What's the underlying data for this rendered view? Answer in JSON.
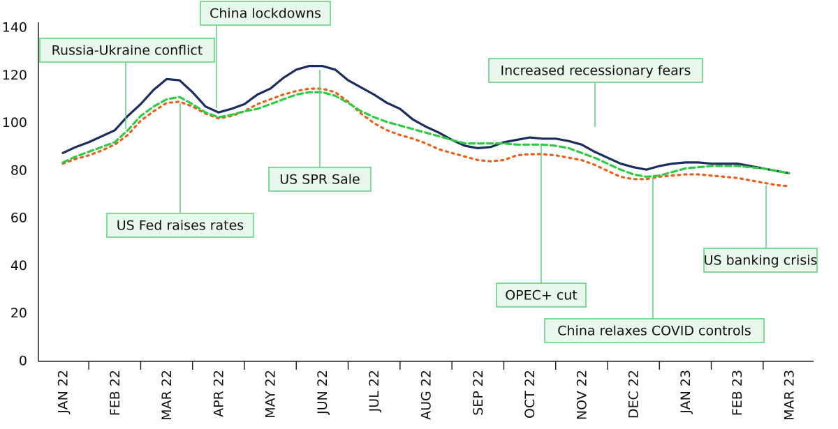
{
  "chart_data": {
    "type": "line",
    "categories": [
      "JAN 22",
      null,
      null,
      null,
      "FEB 22",
      null,
      null,
      null,
      "MAR 22",
      null,
      null,
      null,
      "APR 22",
      null,
      null,
      null,
      "MAY 22",
      null,
      null,
      null,
      "JUN 22",
      null,
      null,
      null,
      "JUL 22",
      null,
      null,
      null,
      "AUG 22",
      null,
      null,
      null,
      "SEP 22",
      null,
      null,
      null,
      "OCT 22",
      null,
      null,
      null,
      "NOV 22",
      null,
      null,
      null,
      "DEC 22",
      null,
      null,
      null,
      "JAN 23",
      null,
      null,
      null,
      "FEB 23",
      null,
      null,
      null,
      "MAR 23"
    ],
    "series": [
      {
        "color": "#1b2d5e",
        "style": "solid",
        "values": [
          87.5,
          90,
          92,
          94.5,
          97,
          103,
          108,
          114,
          118.5,
          118,
          113,
          107,
          104.5,
          106,
          108,
          112,
          114.5,
          119,
          122.5,
          124,
          124,
          122.5,
          118,
          115,
          112,
          108.5,
          106,
          101.5,
          98.5,
          96,
          93,
          90.5,
          89.5,
          90,
          92,
          93,
          94,
          93.5,
          93.5,
          92.5,
          91,
          88,
          85.5,
          83,
          81.5,
          80.5,
          82,
          83,
          83.5,
          83.5,
          83,
          83,
          83,
          82,
          81,
          80,
          79
        ]
      },
      {
        "color": "#e8601c",
        "style": "dotted",
        "values": [
          83,
          85,
          86.5,
          88.5,
          91,
          95,
          101,
          105,
          108.5,
          109,
          107,
          104,
          102,
          103,
          105,
          108,
          110,
          112,
          113.5,
          114.5,
          114.5,
          113,
          109,
          104,
          100,
          97,
          95,
          93.5,
          91.5,
          89,
          87.5,
          86,
          84.5,
          84,
          84.5,
          86.5,
          87,
          87,
          86.5,
          85.5,
          84.5,
          82.5,
          80,
          77.5,
          76.5,
          76.5,
          77.5,
          78,
          78.5,
          78.5,
          78,
          77.5,
          77,
          76,
          75,
          74,
          73.5
        ]
      },
      {
        "color": "#2ecc45",
        "style": "dashed",
        "values": [
          83.5,
          86,
          88,
          90,
          92,
          97,
          103,
          107,
          110,
          111,
          108,
          104.5,
          102.5,
          103.5,
          105,
          106,
          108,
          110,
          112,
          113,
          113,
          111.5,
          108.5,
          105,
          102.5,
          100.5,
          99,
          97.5,
          96,
          94.5,
          93,
          91.5,
          91.5,
          91.5,
          91.5,
          91,
          91,
          91,
          90.5,
          89.5,
          87.5,
          85.5,
          83,
          80.5,
          78.5,
          77.5,
          78,
          79.5,
          81,
          81.5,
          82,
          82,
          82,
          81.5,
          81,
          80,
          79
        ]
      }
    ],
    "ylim": [
      0,
      140
    ],
    "yticks": [
      0,
      20,
      40,
      60,
      80,
      100,
      120,
      140
    ],
    "grid": false,
    "annotations": [
      "Russia-Ukraine conflict",
      "China lockdowns",
      "US Fed raises rates",
      "US SPR Sale",
      "Increased recessionary fears",
      "OPEC+ cut",
      "China relaxes COVID controls",
      "US banking crisis"
    ]
  }
}
